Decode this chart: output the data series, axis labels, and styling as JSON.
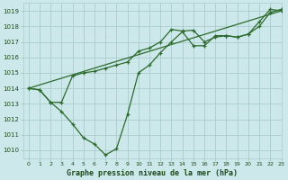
{
  "title": "Graphe pression niveau de la mer (hPa)",
  "background_color": "#cce8ea",
  "grid_color": "#aacccc",
  "line_color": "#2d6a2d",
  "xlim": [
    -0.5,
    23
  ],
  "ylim": [
    1009.5,
    1019.5
  ],
  "yticks": [
    1010,
    1011,
    1012,
    1013,
    1014,
    1015,
    1016,
    1017,
    1018,
    1019
  ],
  "xticks": [
    0,
    1,
    2,
    3,
    4,
    5,
    6,
    7,
    8,
    9,
    10,
    11,
    12,
    13,
    14,
    15,
    16,
    17,
    18,
    19,
    20,
    21,
    22,
    23
  ],
  "series_straight": {
    "x": [
      0,
      23
    ],
    "y": [
      1014.0,
      1019.0
    ]
  },
  "series_upper": {
    "x": [
      0,
      1,
      2,
      3,
      4,
      5,
      6,
      7,
      8,
      9,
      10,
      11,
      12,
      13,
      14,
      15,
      16,
      17,
      18,
      19,
      20,
      21,
      22,
      23
    ],
    "y": [
      1014.0,
      1013.9,
      1013.1,
      1013.1,
      1014.8,
      1015.0,
      1015.1,
      1015.3,
      1015.5,
      1015.7,
      1016.4,
      1016.6,
      1017.0,
      1017.8,
      1017.7,
      1017.75,
      1017.0,
      1017.3,
      1017.4,
      1017.3,
      1017.5,
      1018.0,
      1018.9,
      1019.1
    ]
  },
  "series_lower": {
    "x": [
      0,
      1,
      2,
      3,
      4,
      5,
      6,
      7,
      8,
      9,
      10,
      11,
      12,
      13,
      14,
      15,
      16,
      17,
      18,
      19,
      20,
      21,
      22,
      23
    ],
    "y": [
      1014.0,
      1013.9,
      1013.1,
      1012.5,
      1011.7,
      1010.8,
      1010.4,
      1009.7,
      1010.1,
      1012.3,
      1015.0,
      1015.5,
      1016.3,
      1017.0,
      1017.65,
      1016.75,
      1016.75,
      1017.4,
      1017.4,
      1017.3,
      1017.5,
      1018.3,
      1019.1,
      1019.0
    ]
  }
}
